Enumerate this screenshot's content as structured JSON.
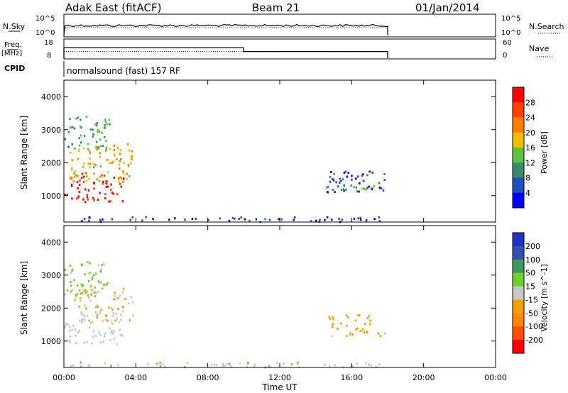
{
  "header": {
    "radar": "Adak East (fitACF)",
    "beam": "Beam 21",
    "date": "01/Jan/2014"
  },
  "noise_panel": {
    "left_label": "N.Sky",
    "right_label": "N.Search",
    "ticks_left": [
      "10^5",
      "10^0"
    ],
    "ticks_right": [
      "10^5",
      "10^0"
    ]
  },
  "freq_panel": {
    "left_label_1": "Freq.",
    "left_label_2": "[MHz]",
    "right_label": "Nave",
    "ticks_left": [
      "18",
      "8"
    ],
    "ticks_right": [
      "60",
      "0"
    ]
  },
  "cpid": {
    "label": "CPID",
    "value": "normalsound (fast) 157 RF"
  },
  "colors": {
    "power_scale": [
      "#0000ff",
      "#2050c0",
      "#3a8a6a",
      "#5cc040",
      "#f0c000",
      "#ff8000",
      "#ff4000",
      "#ff0000"
    ],
    "velocity_scale": [
      "#ff0000",
      "#ff5000",
      "#ff8a00",
      "#f0a000",
      "#c8c8c8",
      "#70d030",
      "#3a9a5a",
      "#3050b0",
      "#2030c0"
    ]
  },
  "chart_data": [
    {
      "type": "line",
      "title": "N.Sky / N.Search",
      "x_range_hours": [
        0,
        24
      ],
      "description_series": [
        {
          "x": [
            0,
            0.1,
            18,
            18
          ],
          "y_state": [
            "low",
            "high",
            "high",
            "low"
          ]
        }
      ]
    },
    {
      "type": "line",
      "title": "Freq / Nave",
      "ylim": [
        8,
        18
      ],
      "series": [
        {
          "name": "Freq.",
          "x": [
            0,
            10,
            10,
            18
          ],
          "values": [
            14,
            14,
            12,
            12
          ]
        },
        {
          "name": "Nave",
          "x": [
            0,
            18
          ],
          "values": [
            12,
            12
          ]
        }
      ]
    },
    {
      "type": "heatmap",
      "ylabel": "Slant Range [km]",
      "xlabel": "Time UT",
      "x_ticks": [
        "00:00",
        "04:00",
        "08:00",
        "12:00",
        "16:00",
        "20:00",
        "00:00"
      ],
      "y_ticks": [
        "1000",
        "2000",
        "3000",
        "4000"
      ],
      "ylim": [
        200,
        4500
      ],
      "colorbar": {
        "label": "Power [dB]",
        "ticks": [
          "28",
          "24",
          "20",
          "16",
          "12",
          "8",
          "4"
        ],
        "range": [
          0,
          30
        ]
      },
      "regions": [
        {
          "t": [
            0,
            3.3
          ],
          "r": [
            800,
            1700
          ],
          "level": 27
        },
        {
          "t": [
            0.3,
            3.8
          ],
          "r": [
            1400,
            2600
          ],
          "level": 18
        },
        {
          "t": [
            0,
            2.5
          ],
          "r": [
            2400,
            3400
          ],
          "level": 10
        },
        {
          "t": [
            14.6,
            18
          ],
          "r": [
            1100,
            1800
          ],
          "level": 6
        },
        {
          "t": [
            14.5,
            18
          ],
          "r": [
            1150,
            1300
          ],
          "level": 12
        },
        {
          "t": [
            0,
            18
          ],
          "r": [
            200,
            350
          ],
          "level": 4
        }
      ]
    },
    {
      "type": "heatmap",
      "ylabel": "Slant Range [km]",
      "xlabel": "Time UT",
      "x_ticks": [
        "00:00",
        "04:00",
        "08:00",
        "12:00",
        "16:00",
        "20:00",
        "00:00"
      ],
      "y_ticks": [
        "1000",
        "2000",
        "3000",
        "4000"
      ],
      "ylim": [
        200,
        4500
      ],
      "colorbar": {
        "label": "Velocity [m s^-1]",
        "ticks": [
          "200",
          "100",
          "50",
          "15",
          "-15",
          "-50",
          "-100",
          "-200"
        ],
        "range": [
          -250,
          250
        ]
      },
      "regions": [
        {
          "t": [
            0,
            3.3
          ],
          "r": [
            900,
            1900
          ],
          "level": 0
        },
        {
          "t": [
            0.5,
            3.8
          ],
          "r": [
            1600,
            2600
          ],
          "level": -30
        },
        {
          "t": [
            0,
            2.5
          ],
          "r": [
            2400,
            3400
          ],
          "level": 40
        },
        {
          "t": [
            14.6,
            17
          ],
          "r": [
            1300,
            1800
          ],
          "level": -60
        },
        {
          "t": [
            14.5,
            18
          ],
          "r": [
            1150,
            1300
          ],
          "level": -40
        },
        {
          "t": [
            0,
            18
          ],
          "r": [
            200,
            350
          ],
          "level": 20
        }
      ]
    }
  ]
}
